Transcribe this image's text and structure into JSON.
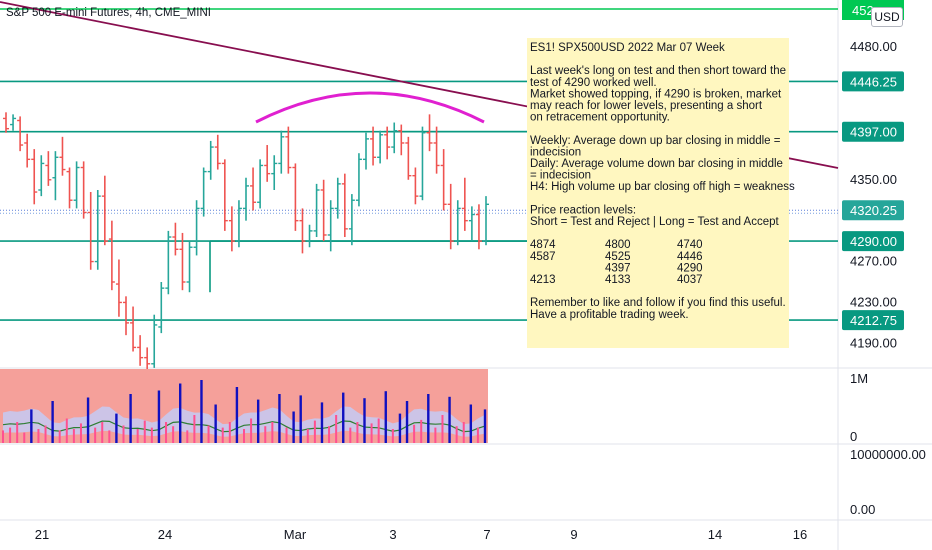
{
  "header": {
    "title": "S&P 500 E-mini Futures, 4h, CME_MINI",
    "currency": "USD"
  },
  "colors": {
    "bull": "#26a69a",
    "bear": "#ef5350",
    "level": "#089981",
    "trend": "#880e4f",
    "arc": "#e020d0",
    "green_line": "#00c853",
    "note_bg": "#fff7c0",
    "vol_bg": "#f5a09a",
    "vol_band": "#c8c8f0",
    "vol_bar": "#1010c0",
    "vol_small": "#ff5090",
    "avg": "#2e7d32"
  },
  "chart_data": {
    "type": "candlestick",
    "ylim": [
      4160,
      4520
    ],
    "price_ticks": [
      4480,
      4350,
      4270,
      4230,
      4190
    ],
    "price_tick_labels": [
      "4480.00",
      "4350.00",
      "4270.00",
      "4230.00",
      "4190.00"
    ],
    "date_ticks": [
      "21",
      "24",
      "Mar",
      "3",
      "7",
      "9",
      "14",
      "16"
    ],
    "levels": [
      {
        "value": 4446.25,
        "label": "4446.25"
      },
      {
        "value": 4397.0,
        "label": "4397.00"
      },
      {
        "value": 4290.0,
        "label": "4290.00"
      },
      {
        "value": 4212.75,
        "label": "4212.75"
      }
    ],
    "current_price": {
      "value": 4320.25,
      "label": "4320.25"
    },
    "top_tag": {
      "value": 4520,
      "label": "452"
    },
    "candles": [
      [
        4410,
        4416,
        4396,
        4400
      ],
      [
        4404,
        4414,
        4398,
        4410
      ],
      [
        4408,
        4412,
        4378,
        4384
      ],
      [
        4386,
        4395,
        4362,
        4370
      ],
      [
        4370,
        4380,
        4326,
        4338
      ],
      [
        4340,
        4374,
        4334,
        4366
      ],
      [
        4364,
        4378,
        4344,
        4350
      ],
      [
        4352,
        4378,
        4330,
        4372
      ],
      [
        4372,
        4392,
        4354,
        4360
      ],
      [
        4358,
        4362,
        4322,
        4330
      ],
      [
        4330,
        4368,
        4322,
        4362
      ],
      [
        4362,
        4368,
        4312,
        4318
      ],
      [
        4318,
        4338,
        4262,
        4270
      ],
      [
        4270,
        4340,
        4262,
        4334
      ],
      [
        4334,
        4354,
        4286,
        4290
      ],
      [
        4292,
        4310,
        4242,
        4250
      ],
      [
        4248,
        4272,
        4216,
        4230
      ],
      [
        4230,
        4236,
        4198,
        4210
      ],
      [
        4210,
        4226,
        4182,
        4186
      ],
      [
        4186,
        4198,
        4168,
        4176
      ],
      [
        4176,
        4186,
        4162,
        4170
      ],
      [
        4170,
        4218,
        4166,
        4208
      ],
      [
        4206,
        4250,
        4200,
        4244
      ],
      [
        4244,
        4300,
        4238,
        4294
      ],
      [
        4294,
        4308,
        4276,
        4282
      ],
      [
        4282,
        4298,
        4242,
        4250
      ],
      [
        4250,
        4290,
        4240,
        4284
      ],
      [
        4284,
        4330,
        4276,
        4322
      ],
      [
        4322,
        4362,
        4314,
        4358
      ],
      [
        4358,
        4388,
        4350,
        4382
      ],
      [
        4382,
        4394,
        4360,
        4366
      ],
      [
        4366,
        4370,
        4300,
        4310
      ],
      [
        4310,
        4324,
        4280,
        4290
      ],
      [
        4290,
        4330,
        4284,
        4322
      ],
      [
        4322,
        4352,
        4310,
        4344
      ],
      [
        4344,
        4362,
        4320,
        4328
      ],
      [
        4328,
        4370,
        4322,
        4364
      ],
      [
        4364,
        4384,
        4348,
        4356
      ],
      [
        4356,
        4374,
        4340,
        4366
      ],
      [
        4366,
        4398,
        4356,
        4392
      ],
      [
        4392,
        4402,
        4356,
        4362
      ],
      [
        4362,
        4366,
        4300,
        4310
      ],
      [
        4310,
        4322,
        4278,
        4290
      ],
      [
        4290,
        4306,
        4284,
        4300
      ],
      [
        4300,
        4346,
        4294,
        4340
      ],
      [
        4340,
        4350,
        4290,
        4296
      ],
      [
        4296,
        4330,
        4280,
        4322
      ],
      [
        4322,
        4352,
        4312,
        4346
      ],
      [
        4346,
        4356,
        4294,
        4302
      ],
      [
        4302,
        4336,
        4286,
        4330
      ],
      [
        4330,
        4376,
        4324,
        4370
      ],
      [
        4370,
        4396,
        4360,
        4390
      ],
      [
        4390,
        4402,
        4364,
        4372
      ],
      [
        4372,
        4398,
        4366,
        4394
      ],
      [
        4394,
        4402,
        4370,
        4382
      ],
      [
        4382,
        4406,
        4376,
        4398
      ],
      [
        4398,
        4404,
        4374,
        4386
      ],
      [
        4386,
        4392,
        4350,
        4354
      ],
      [
        4354,
        4362,
        4326,
        4334
      ],
      [
        4334,
        4402,
        4330,
        4396
      ],
      [
        4396,
        4414,
        4378,
        4386
      ],
      [
        4386,
        4402,
        4356,
        4364
      ],
      [
        4364,
        4380,
        4320,
        4326
      ],
      [
        4326,
        4346,
        4282,
        4290
      ],
      [
        4290,
        4330,
        4286,
        4322
      ],
      [
        4322,
        4352,
        4300,
        4310
      ],
      [
        4310,
        4324,
        4290,
        4316
      ],
      [
        4316,
        4326,
        4282,
        4290
      ],
      [
        4290,
        4334,
        4286,
        4326
      ]
    ],
    "volume_axis": {
      "ticks": [
        "1M",
        "0"
      ]
    },
    "volume": [
      0.18,
      0.22,
      0.3,
      0.15,
      0.48,
      0.2,
      0.25,
      0.6,
      0.18,
      0.35,
      0.2,
      0.28,
      0.65,
      0.22,
      0.3,
      0.18,
      0.42,
      0.25,
      0.7,
      0.2,
      0.32,
      0.22,
      0.75,
      0.3,
      0.24,
      0.85,
      0.18,
      0.4,
      0.9,
      0.25,
      0.55,
      0.22,
      0.3,
      0.8,
      0.2,
      0.35,
      0.62,
      0.24,
      0.3,
      0.7,
      0.22,
      0.45,
      0.68,
      0.2,
      0.32,
      0.58,
      0.24,
      0.4,
      0.72,
      0.22,
      0.3,
      0.64,
      0.28,
      0.35,
      0.74,
      0.2,
      0.42,
      0.6,
      0.26,
      0.33,
      0.7,
      0.22,
      0.4,
      0.66,
      0.24,
      0.3,
      0.55,
      0.22,
      0.48
    ],
    "secondary_axis": {
      "ticks": [
        "10000000.00",
        "0.00"
      ]
    },
    "arc": {
      "from": 0.2,
      "to": 0.5
    }
  },
  "note": {
    "lines": [
      "ES1! SPX500USD 2022 Mar 07 Week",
      "",
      "Last week's long on test and then short toward the",
      "test of 4290 worked well.",
      "Market showed topping, if 4290 is broken, market",
      "may reach for lower levels, presenting a short",
      "on retracement opportunity.",
      "",
      "Weekly: Average down up bar closing in middle =",
      "indecision",
      "Daily:  Average volume down bar closing in middle",
      "= indecision",
      "H4: High volume up bar closing off high = weakness",
      "",
      "Price reaction levels:",
      "Short = Test and Reject   |   Long = Test and Accept",
      ""
    ],
    "levels_table": [
      [
        "4874",
        "4800",
        "4740"
      ],
      [
        "4587",
        "4525",
        "4446"
      ],
      [
        "",
        "4397",
        "4290"
      ],
      [
        "4213",
        "4133",
        "4037"
      ]
    ],
    "footer": [
      "",
      "Remember to like and follow if you find this useful.",
      "Have a profitable trading week."
    ]
  }
}
